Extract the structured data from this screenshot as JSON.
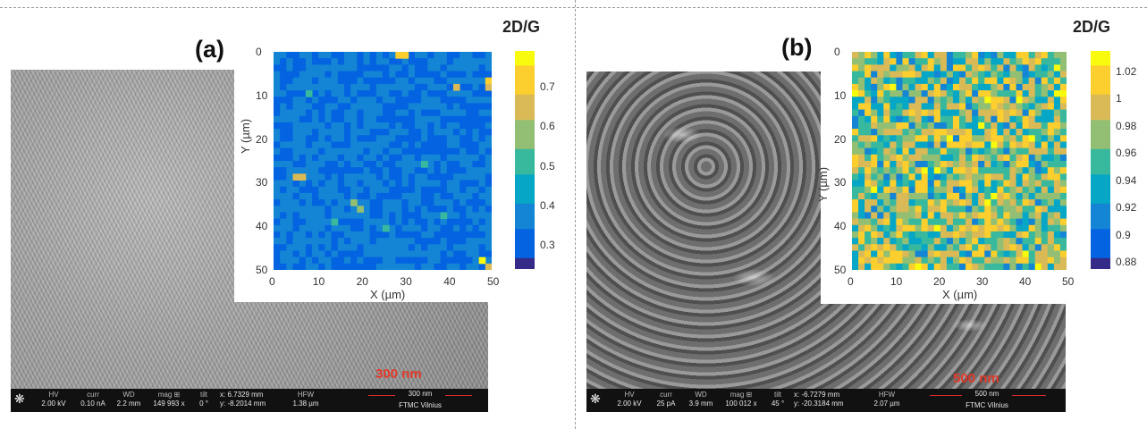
{
  "panel_a": {
    "label": "(a)",
    "ratio_label": "2D/G",
    "scale_text": "300 nm",
    "databar": {
      "hv_key": "HV",
      "hv": "2.00 kV",
      "curr_key": "curr",
      "curr": "0.10 nA",
      "wd_key": "WD",
      "wd": "2.2 mm",
      "mag_key": "mag ⊞",
      "mag": "149 993 x",
      "tilt_key": "tilt",
      "tilt": "0 °",
      "x_coord": "x: 6.7329 mm",
      "y_coord": "y: -8.2014 mm",
      "hfw_key": "HFW",
      "hfw": "1.38 µm",
      "bar_label": "300 nm",
      "lab": "FTMC Vilnius"
    },
    "map": {
      "xlabel": "X (µm)",
      "ylabel": "Y (µm)",
      "xticks": [
        "0",
        "10",
        "20",
        "30",
        "40",
        "50"
      ],
      "yticks": [
        "0",
        "10",
        "20",
        "30",
        "40",
        "50"
      ],
      "colorbar_ticks": [
        "0.7",
        "0.6",
        "0.5",
        "0.4",
        "0.3"
      ],
      "colorbar_range": [
        0.24,
        0.79
      ],
      "base_level": 0.3
    }
  },
  "panel_b": {
    "label": "(b)",
    "ratio_label": "2D/G",
    "scale_text": "500 nm",
    "databar": {
      "hv_key": "HV",
      "hv": "2.00 kV",
      "curr_key": "curr",
      "curr": "25 pA",
      "wd_key": "WD",
      "wd": "3.9 mm",
      "mag_key": "mag ⊞",
      "mag": "100 012 x",
      "tilt_key": "tilt",
      "tilt": "45 °",
      "x_coord": "x: -6.7279 mm",
      "y_coord": "y: -20.3184 mm",
      "hfw_key": "HFW",
      "hfw": "2.07 µm",
      "bar_label": "500 nm",
      "lab": "FTMC Vilnius"
    },
    "map": {
      "xlabel": "X (µm)",
      "ylabel": "Y (µm)",
      "xticks": [
        "0",
        "10",
        "20",
        "30",
        "40",
        "50"
      ],
      "yticks": [
        "0",
        "10",
        "20",
        "30",
        "40",
        "50"
      ],
      "colorbar_ticks": [
        "1.02",
        "1",
        "0.98",
        "0.96",
        "0.94",
        "0.92",
        "0.9",
        "0.88"
      ],
      "colorbar_range": [
        0.875,
        1.035
      ]
    }
  },
  "colors": {
    "parula": [
      "#352a87",
      "#0363e1",
      "#1485d4",
      "#06a7c6",
      "#38b99e",
      "#92bf73",
      "#d9ba56",
      "#fcce2e",
      "#f9fb0e"
    ],
    "scale_red": "#e23a2a"
  }
}
